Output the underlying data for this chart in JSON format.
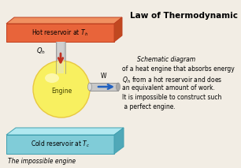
{
  "title": "Law of Thermodynamic",
  "hot_reservoir_label": "Hot reservoir at $T_h$",
  "cold_reservoir_label": "Cold reservoir at $T_c$",
  "engine_label": "Engine",
  "impossible_label": "The impossible engine",
  "description_lines": [
    "Schematic diagram",
    "of a heat engine that absorbs energy",
    "$Q_h$ from a hot reservoir and does",
    "an equivalent amount of work.",
    "It is impossible to construct such",
    " a perfect engine."
  ],
  "Qh_label": "$Q_h$",
  "W_label": "W",
  "hot_color": "#e8643a",
  "hot_top_color": "#f09060",
  "hot_right_color": "#c04820",
  "cold_color": "#80ccd8",
  "cold_top_color": "#b0e8f0",
  "cold_right_color": "#50a8b8",
  "engine_color_center": "#f8f060",
  "engine_color_edge": "#e8c840",
  "bg_color": "#f2ede4",
  "arrow_down_color": "#c03020",
  "arrow_right_color": "#2060c0",
  "pipe_color": "#c0c0c0",
  "pipe_dark": "#909090"
}
